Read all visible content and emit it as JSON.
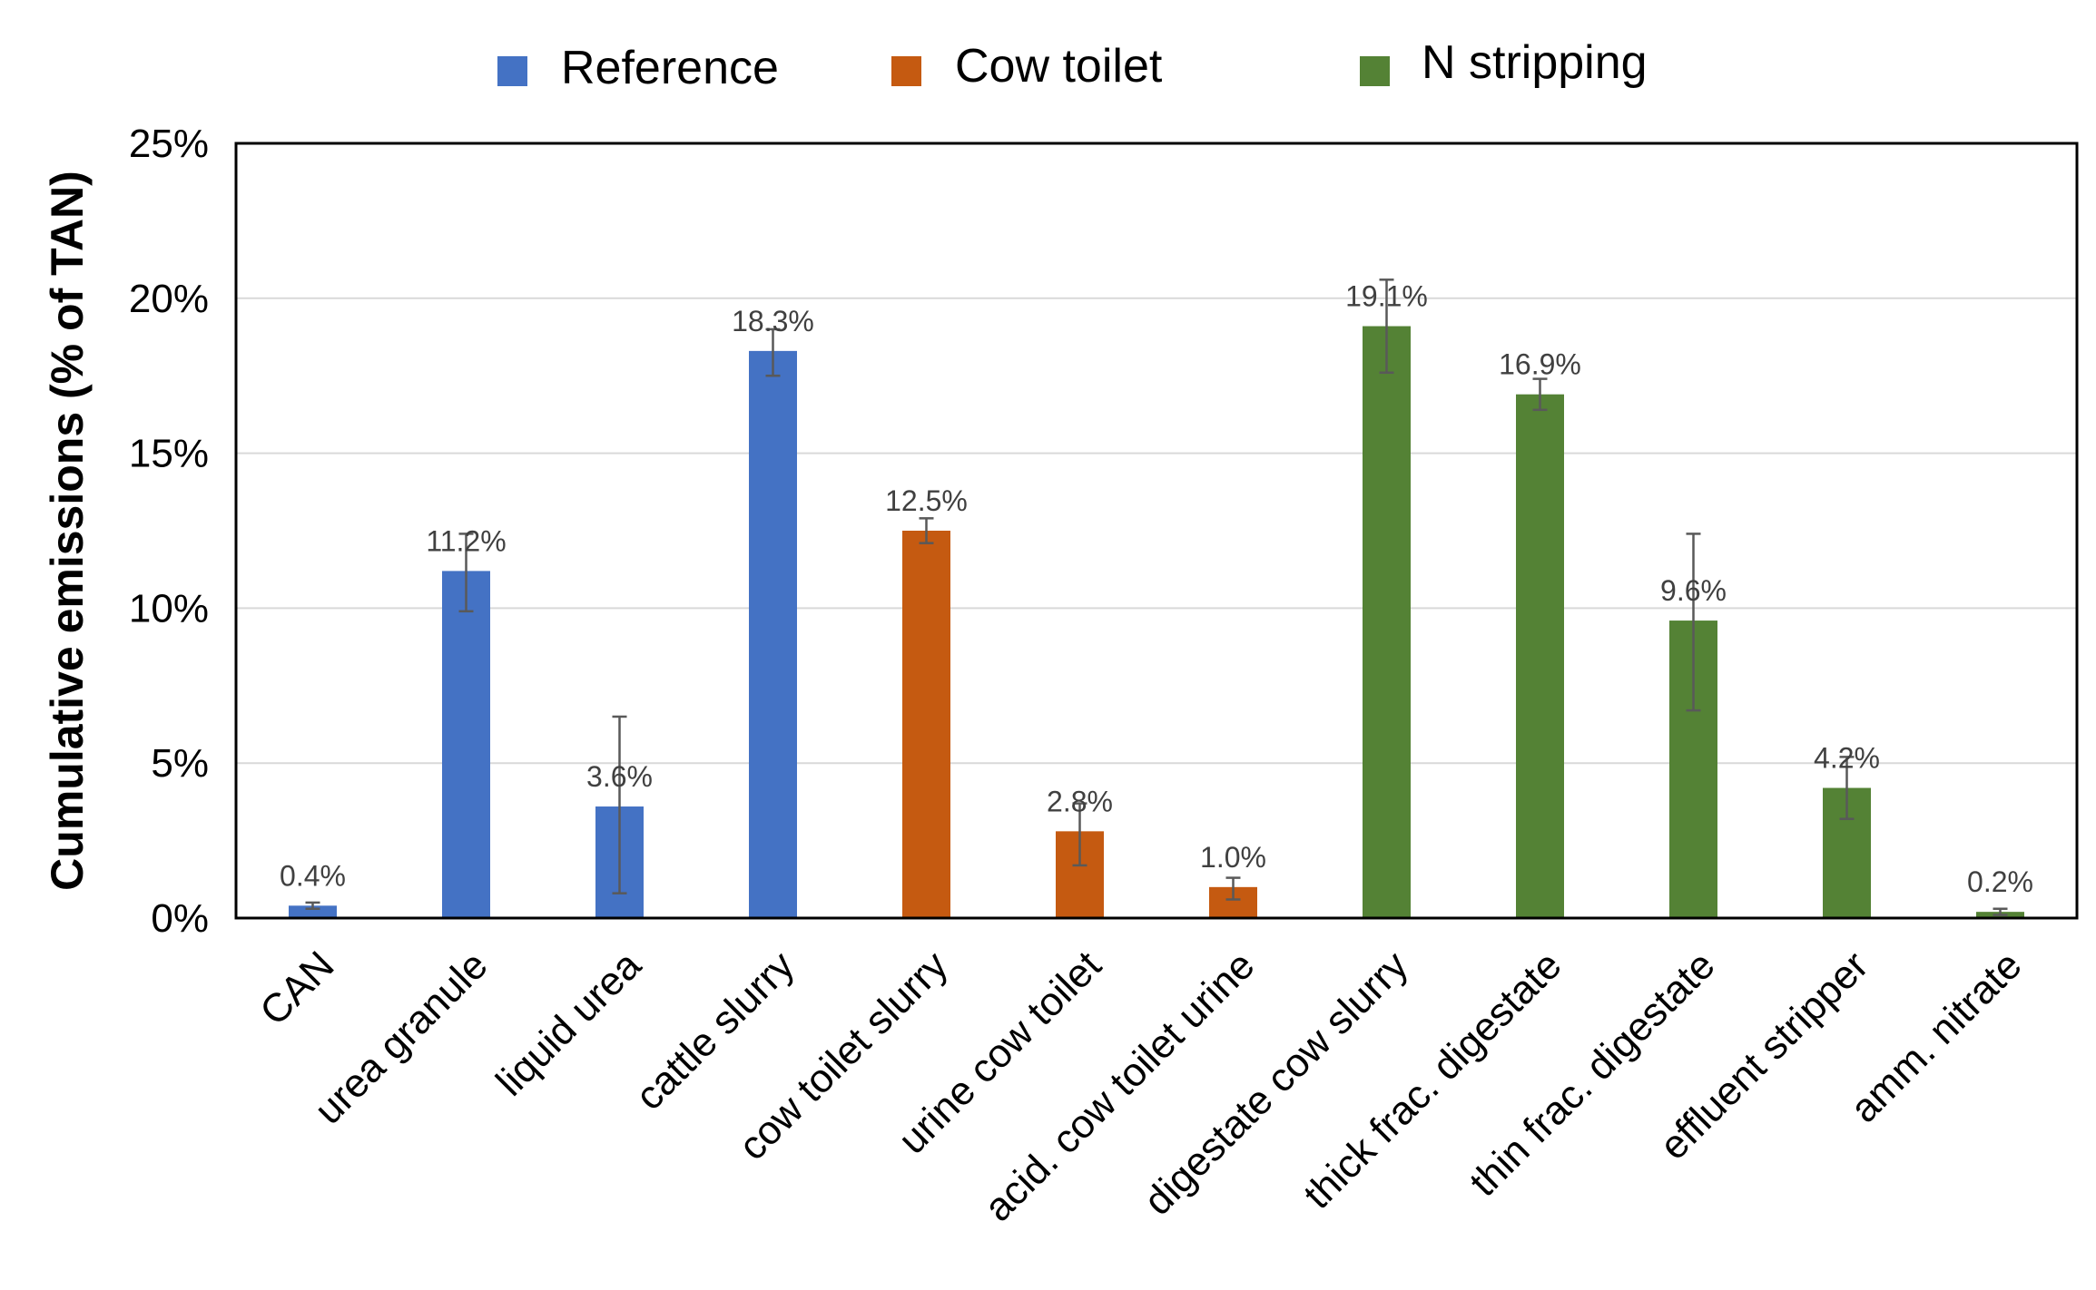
{
  "chart_data": {
    "type": "bar",
    "title": "",
    "xlabel": "",
    "ylabel": "Cumulative emissions (% of TAN)",
    "ylim": [
      0,
      25
    ],
    "yticks": [
      0,
      5,
      10,
      15,
      20,
      25
    ],
    "ytick_labels": [
      "0%",
      "5%",
      "10%",
      "15%",
      "20%",
      "25%"
    ],
    "grid": true,
    "legend_position": "top",
    "legend": [
      {
        "name": "Reference",
        "color": "#4472C4"
      },
      {
        "name": "Cow toilet",
        "color": "#C55A11"
      },
      {
        "name": "N stripping",
        "color": "#548235"
      }
    ],
    "categories": [
      "CAN",
      "urea granule",
      "liquid urea",
      "cattle slurry",
      "cow toilet slurry",
      "urine cow toilet",
      "acid. cow toilet urine",
      "digestate cow slurry",
      "thick frac. digestate",
      "thin frac. digestate",
      "effluent stripper",
      "amm. nitrate"
    ],
    "groups": [
      "Reference",
      "Reference",
      "Reference",
      "Reference",
      "Cow toilet",
      "Cow toilet",
      "Cow toilet",
      "N stripping",
      "N stripping",
      "N stripping",
      "N stripping",
      "N stripping"
    ],
    "values": [
      0.4,
      11.2,
      3.6,
      18.3,
      12.5,
      2.8,
      1.0,
      19.1,
      16.9,
      9.6,
      4.2,
      0.2
    ],
    "value_labels": [
      "0.4%",
      "11.2%",
      "3.6%",
      "18.3%",
      "12.5%",
      "2.8%",
      "1.0%",
      "19.1%",
      "16.9%",
      "9.6%",
      "4.2%",
      "0.2%"
    ],
    "error_low": [
      0.3,
      9.9,
      0.8,
      17.5,
      12.1,
      1.7,
      0.6,
      17.6,
      16.4,
      6.7,
      3.2,
      0.1
    ],
    "error_high": [
      0.5,
      12.4,
      6.5,
      19.0,
      12.9,
      3.7,
      1.3,
      20.6,
      17.4,
      12.4,
      5.2,
      0.3
    ]
  }
}
